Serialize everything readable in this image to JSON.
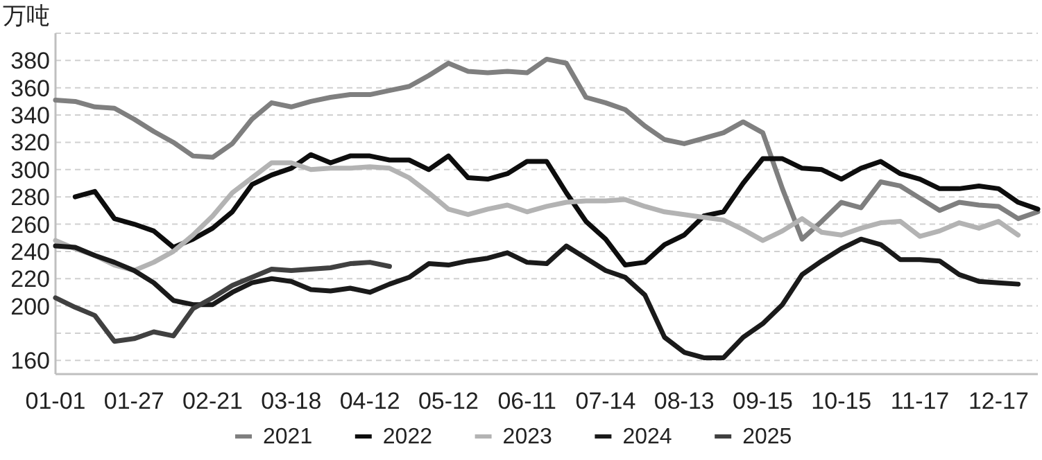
{
  "chart_data": {
    "type": "line",
    "ylabel": "万吨",
    "categories": [
      "01-01",
      null,
      null,
      null,
      "01-27",
      null,
      null,
      null,
      "02-21",
      null,
      null,
      null,
      "03-18",
      null,
      null,
      null,
      "04-12",
      null,
      null,
      null,
      "05-12",
      null,
      null,
      null,
      "06-11",
      null,
      null,
      null,
      "07-14",
      null,
      null,
      null,
      "08-13",
      null,
      null,
      null,
      "09-15",
      null,
      null,
      null,
      "10-15",
      null,
      null,
      null,
      "11-17",
      null,
      null,
      null,
      "12-17",
      null,
      null
    ],
    "series": [
      {
        "name": "2021",
        "color": "#7f7f7f",
        "values": [
          351,
          350,
          346,
          345,
          337,
          328,
          320,
          310,
          309,
          319,
          337,
          349,
          346,
          350,
          353,
          355,
          355,
          358,
          361,
          369,
          378,
          372,
          371,
          372,
          371,
          381,
          378,
          353,
          349,
          344,
          332,
          322,
          319,
          323,
          327,
          335,
          327,
          286,
          249,
          262,
          276,
          272,
          291,
          288,
          279,
          270,
          276,
          274,
          273,
          264,
          269
        ]
      },
      {
        "name": "2022",
        "color": "#0d0d0d",
        "values": [
          null,
          280,
          284,
          264,
          260,
          255,
          243,
          249,
          257,
          269,
          289,
          296,
          301,
          311,
          305,
          310,
          310,
          307,
          307,
          300,
          310,
          294,
          293,
          297,
          306,
          306,
          283,
          262,
          249,
          230,
          232,
          245,
          252,
          266,
          269,
          290,
          308,
          308,
          301,
          300,
          293,
          301,
          306,
          297,
          293,
          286,
          286,
          288,
          286,
          276,
          271
        ]
      },
      {
        "name": "2023",
        "color": "#b3b3b3",
        "values": [
          248,
          242,
          237,
          230,
          226,
          232,
          240,
          252,
          266,
          283,
          294,
          305,
          305,
          300,
          301,
          301,
          302,
          301,
          294,
          283,
          271,
          267,
          271,
          274,
          269,
          273,
          276,
          277,
          277,
          278,
          273,
          269,
          267,
          265,
          263,
          256,
          248,
          255,
          264,
          254,
          252,
          257,
          261,
          262,
          251,
          255,
          261,
          257,
          262,
          252,
          null
        ]
      },
      {
        "name": "2024",
        "color": "#1a1a1a",
        "values": [
          244,
          243,
          237,
          232,
          226,
          217,
          204,
          201,
          201,
          210,
          217,
          220,
          218,
          212,
          211,
          213,
          210,
          216,
          221,
          231,
          230,
          233,
          235,
          239,
          232,
          231,
          244,
          235,
          226,
          221,
          208,
          177,
          166,
          162,
          162,
          177,
          187,
          201,
          223,
          233,
          242,
          249,
          245,
          234,
          234,
          233,
          223,
          218,
          217,
          216,
          null
        ]
      },
      {
        "name": "2025",
        "color": "#404040",
        "values": [
          206,
          199,
          193,
          174,
          176,
          181,
          178,
          198,
          206,
          215,
          221,
          227,
          226,
          227,
          228,
          231,
          232,
          229,
          null,
          null,
          null,
          null,
          null,
          null,
          null,
          null,
          null,
          null,
          null,
          null,
          null,
          null,
          null,
          null,
          null,
          null,
          null,
          null,
          null,
          null,
          null,
          null,
          null,
          null,
          null,
          null,
          null,
          null,
          null,
          null,
          null
        ]
      }
    ],
    "ylim": [
      150,
      400
    ],
    "yticks": [
      {
        "value": 160,
        "label": "160"
      },
      {
        "value": 180,
        "label": null
      },
      200,
      220,
      240,
      260,
      280,
      300,
      320,
      340,
      360,
      380,
      {
        "value": 400,
        "label": null
      }
    ],
    "grid": "y",
    "legend": "bottom"
  }
}
